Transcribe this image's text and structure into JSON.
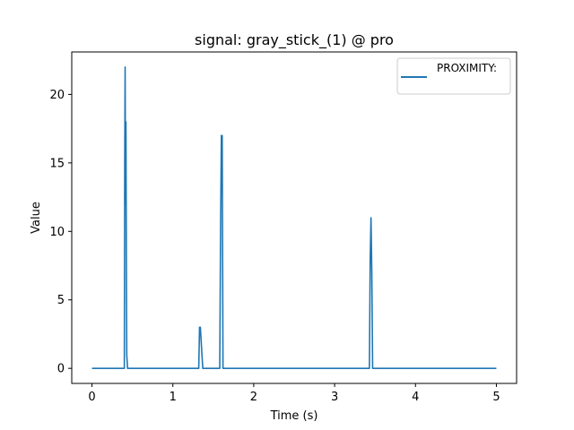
{
  "chart_data": {
    "type": "line",
    "title": "signal: gray_stick_(1) @ pro",
    "xlabel": "Time (s)",
    "ylabel": "Value",
    "xlim": [
      -0.25,
      5.25
    ],
    "ylim": [
      -1.1,
      23.1
    ],
    "xticks": [
      0,
      1,
      2,
      3,
      4,
      5
    ],
    "yticks": [
      0,
      5,
      10,
      15,
      20
    ],
    "grid": false,
    "legend_position": "top-right",
    "series": [
      {
        "name": "PROXIMITY:",
        "color": "#1f77b4",
        "x": [
          0,
          0.4,
          0.405,
          0.41,
          0.415,
          0.42,
          0.425,
          0.43,
          0.44,
          0.45,
          1.32,
          1.33,
          1.34,
          1.35,
          1.36,
          1.37,
          1.58,
          1.59,
          1.6,
          1.61,
          1.62,
          3.43,
          3.44,
          3.45,
          3.46,
          3.47,
          5.0
        ],
        "y": [
          0,
          0,
          15,
          22,
          12,
          18,
          8,
          1,
          0,
          0,
          0,
          3,
          3,
          2,
          1,
          0,
          0,
          10,
          17,
          17,
          0,
          0,
          8,
          11,
          7,
          0,
          0
        ]
      }
    ]
  }
}
